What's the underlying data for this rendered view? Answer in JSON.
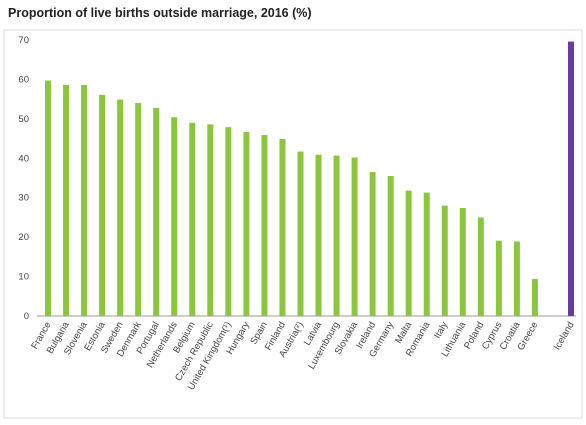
{
  "chart_data": {
    "type": "bar",
    "title": "Proportion of live births outside marriage, 2016 (%)",
    "categories": [
      "France",
      "Bulgaria",
      "Slovenia",
      "Estonia",
      "Sweden",
      "Denmark",
      "Portugal",
      "Netherlands",
      "Belgium",
      "Czech Republic",
      "United Kingdom(¹)",
      "Hungary",
      "Spain",
      "Finland",
      "Austria(²)",
      "Latvia",
      "Luxembourg",
      "Slovakia",
      "Ireland",
      "Germany",
      "Malta",
      "Romania",
      "Italy",
      "Lithuania",
      "Poland",
      "Cyprus",
      "Croatia",
      "Greece",
      null,
      "Iceland"
    ],
    "values": [
      59.7,
      58.6,
      58.6,
      56.1,
      54.9,
      54.0,
      52.8,
      50.4,
      49.0,
      48.6,
      47.9,
      46.7,
      45.9,
      44.9,
      41.7,
      40.9,
      40.7,
      40.2,
      36.5,
      35.5,
      31.8,
      31.3,
      28.0,
      27.4,
      25.0,
      19.1,
      18.9,
      9.4,
      null,
      69.6
    ],
    "colors": [
      "#8cc63f",
      "#8cc63f",
      "#8cc63f",
      "#8cc63f",
      "#8cc63f",
      "#8cc63f",
      "#8cc63f",
      "#8cc63f",
      "#8cc63f",
      "#8cc63f",
      "#8cc63f",
      "#8cc63f",
      "#8cc63f",
      "#8cc63f",
      "#8cc63f",
      "#8cc63f",
      "#8cc63f",
      "#8cc63f",
      "#8cc63f",
      "#8cc63f",
      "#8cc63f",
      "#8cc63f",
      "#8cc63f",
      "#8cc63f",
      "#8cc63f",
      "#8cc63f",
      "#8cc63f",
      "#8cc63f",
      null,
      "#6a3d9a"
    ],
    "ylim": [
      0,
      70
    ],
    "yticks": [
      0,
      10,
      20,
      30,
      40,
      50,
      60,
      70
    ],
    "grid": false
  }
}
